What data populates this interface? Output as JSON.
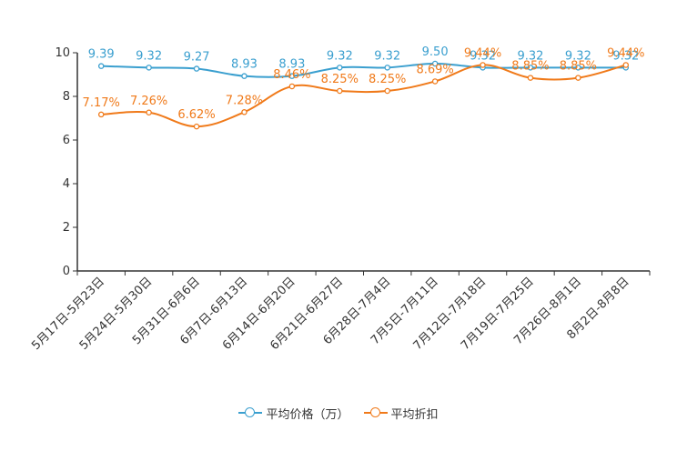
{
  "chart_data": {
    "type": "line",
    "title": "",
    "xlabel": "",
    "ylabel": "",
    "ylim": [
      0,
      10
    ],
    "yticks": [
      0,
      2,
      4,
      6,
      8,
      10
    ],
    "grid": false,
    "legend_position": "bottom-center",
    "categories": [
      "5月17日-5月23日",
      "5月24日-5月30日",
      "5月31日-6月6日",
      "6月7日-6月13日",
      "6月14日-6月20日",
      "6月21日-6月27日",
      "6月28日-7月4日",
      "7月5日-7月11日",
      "7月12日-7月18日",
      "7月19日-7月25日",
      "7月26日-8月1日",
      "8月2日-8月8日"
    ],
    "series": [
      {
        "name": "平均价格（万）",
        "color": "#3a9fcf",
        "values": [
          9.39,
          9.32,
          9.27,
          8.93,
          8.93,
          9.32,
          9.32,
          9.5,
          9.32,
          9.32,
          9.32,
          9.32
        ],
        "labels": [
          "9.39",
          "9.32",
          "9.27",
          "8.93",
          "8.93",
          "9.32",
          "9.32",
          "9.50",
          "9.32",
          "9.32",
          "9.32",
          "9.32"
        ]
      },
      {
        "name": "平均折扣",
        "color": "#f07a1a",
        "values": [
          7.17,
          7.26,
          6.62,
          7.28,
          8.46,
          8.25,
          8.25,
          8.69,
          9.44,
          8.85,
          8.85,
          9.44
        ],
        "labels": [
          "7.17%",
          "7.26%",
          "6.62%",
          "7.28%",
          "8.46%",
          "8.25%",
          "8.25%",
          "8.69%",
          "9.44%",
          "8.85%",
          "8.85%",
          "9.44%"
        ]
      }
    ]
  },
  "legend": {
    "items": [
      {
        "label": "平均价格（万）",
        "color": "#3a9fcf"
      },
      {
        "label": "平均折扣",
        "color": "#f07a1a"
      }
    ]
  }
}
